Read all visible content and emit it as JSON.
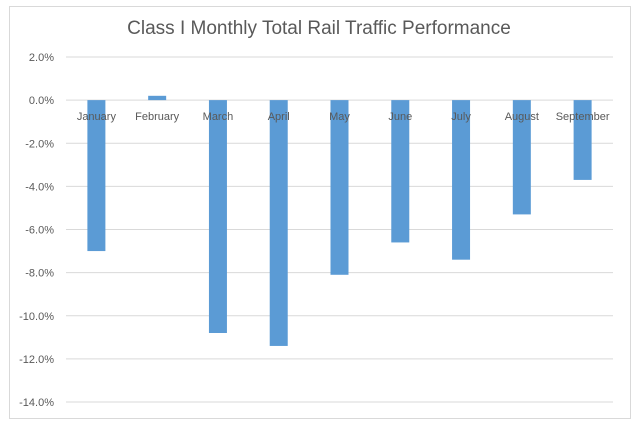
{
  "chart_data": {
    "type": "bar",
    "title": "Class I Monthly Total Rail Traffic Performance",
    "xlabel": "",
    "ylabel": "",
    "categories": [
      "January",
      "February",
      "March",
      "April",
      "May",
      "June",
      "July",
      "August",
      "September"
    ],
    "values": [
      -7.0,
      0.2,
      -10.8,
      -11.4,
      -8.1,
      -6.6,
      -7.4,
      -5.3,
      -3.7
    ],
    "ylim": [
      -14,
      2
    ],
    "yticks": [
      2,
      0,
      -2,
      -4,
      -6,
      -8,
      -10,
      -12,
      -14
    ],
    "ytick_labels": [
      "2.0%",
      "0.0%",
      "-2.0%",
      "-4.0%",
      "-6.0%",
      "-8.0%",
      "-10.0%",
      "-12.0%",
      "-14.0%"
    ],
    "grid": true,
    "legend": "none",
    "bar_color": "#5b9bd5"
  }
}
